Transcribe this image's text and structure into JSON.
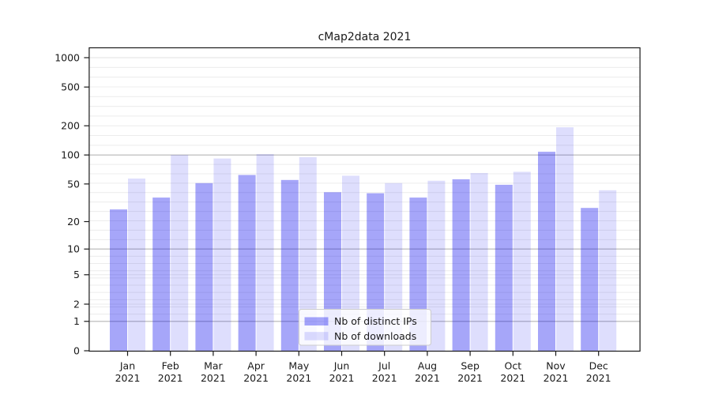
{
  "chart_data": {
    "type": "bar",
    "title": "cMap2data 2021",
    "categories": [
      "Jan",
      "Feb",
      "Mar",
      "Apr",
      "May",
      "Jun",
      "Jul",
      "Aug",
      "Sep",
      "Oct",
      "Nov",
      "Dec"
    ],
    "x_year": "2021",
    "series": [
      {
        "name": "Nb of distinct IPs",
        "color": "rgba(0,0,238,0.35)",
        "values": [
          27,
          36,
          51,
          62,
          55,
          41,
          40,
          36,
          56,
          49,
          108,
          28
        ]
      },
      {
        "name": "Nb of downloads",
        "color": "rgba(0,0,238,0.13)",
        "values": [
          57,
          100,
          92,
          102,
          95,
          61,
          51,
          54,
          65,
          67,
          193,
          43
        ]
      }
    ],
    "y_axis": {
      "scale": "symlog (position proportional to ln(1+value))",
      "ticks": [
        0,
        1,
        2,
        5,
        10,
        20,
        50,
        100,
        200,
        500,
        1000
      ],
      "major_gridline_values": [
        1,
        10,
        100
      ],
      "range": [
        0,
        1277
      ]
    },
    "grid": "on",
    "legend_position": "bottom-center",
    "colors": {
      "bars_dark_on_white": "#a6a6f9",
      "bars_light_on_white": "#dedefd",
      "major_grid": "#b5b5b5",
      "minor_grid": "#ececec",
      "spine": "#1a1a1a",
      "legend_border": "#cccccc"
    }
  }
}
